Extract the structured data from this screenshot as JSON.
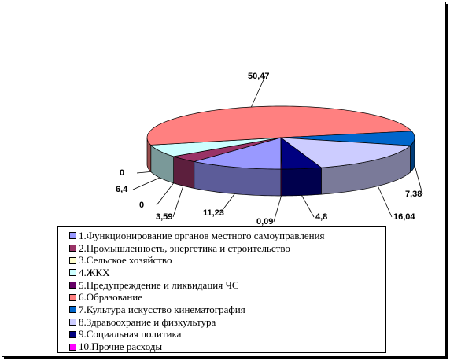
{
  "chart_data": {
    "type": "pie",
    "title": "",
    "three_d": true,
    "series": [
      {
        "values": [
          11.23,
          3.59,
          0,
          6.4,
          0,
          50.47,
          7.38,
          16.04,
          4.8,
          0.09
        ]
      }
    ],
    "categories": [
      "1.Функционирование органов местного самоуправления",
      "2.Промышленность, энергетика и строительство",
      "3.Сельское хозяйство",
      "4.ЖКХ",
      "5.Предупреждение и ликвидация ЧС",
      "6.Образование",
      "7.Культура искусство  кинематография",
      "8.Здравоохрание и физкультура",
      "9.Социальная  политика",
      "10.Прочие расходы"
    ],
    "data_labels": [
      "11,23",
      "3,59",
      "0",
      "6,4",
      "0",
      "50,47",
      "7,38",
      "16,04",
      "4,8",
      "0,09"
    ],
    "colors": [
      "#9999ff",
      "#993366",
      "#ffffcc",
      "#ccffff",
      "#660066",
      "#ff8080",
      "#0066cc",
      "#ccccff",
      "#000080",
      "#ff00ff"
    ],
    "legend_position": "bottom",
    "grid": false
  }
}
